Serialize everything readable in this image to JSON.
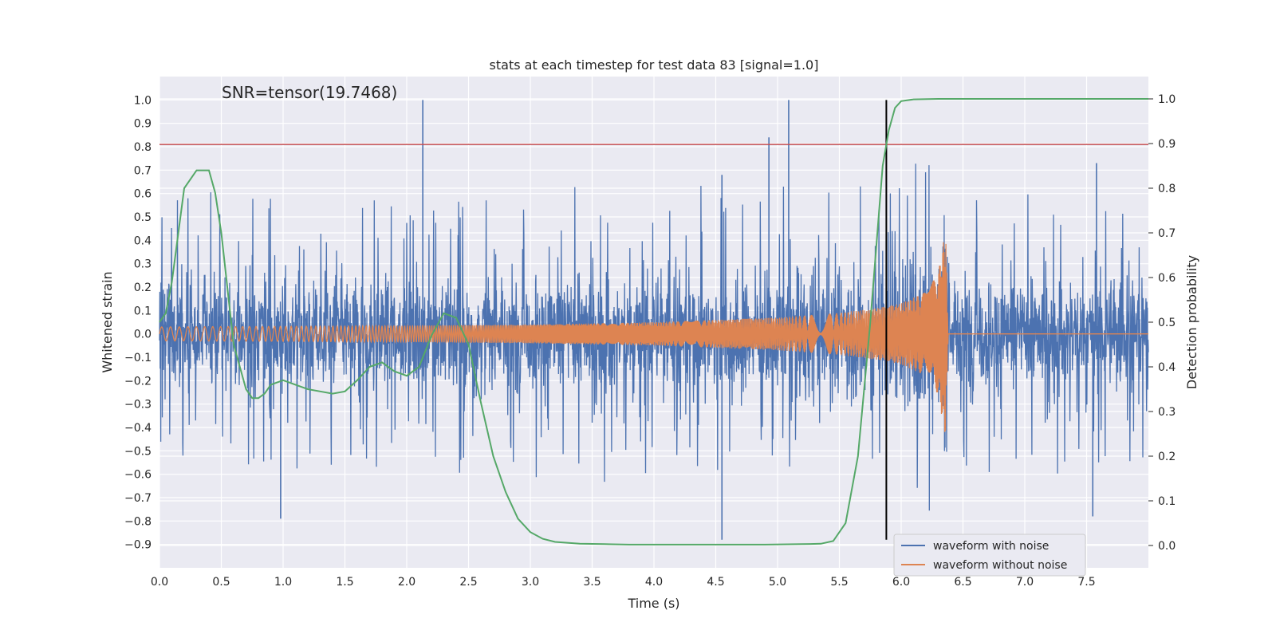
{
  "chart_data": {
    "type": "line",
    "title": "stats at each timestep for test data 83 [signal=1.0]",
    "xlabel": "Time (s)",
    "ylabel": "Whitened strain",
    "y2label": "Detection probability",
    "annotation": "SNR=tensor(19.7468)",
    "xlim": [
      0.0,
      8.0
    ],
    "ylim": [
      -1.0,
      1.1
    ],
    "y2lim": [
      -0.05,
      1.05
    ],
    "x_ticks": [
      "0.0",
      "0.5",
      "1.0",
      "1.5",
      "2.0",
      "2.5",
      "3.0",
      "3.5",
      "4.0",
      "4.5",
      "5.0",
      "5.5",
      "6.0",
      "6.5",
      "7.0",
      "7.5"
    ],
    "y_ticks": [
      "−0.9",
      "−0.8",
      "−0.7",
      "−0.6",
      "−0.5",
      "−0.4",
      "−0.3",
      "−0.2",
      "−0.1",
      "0.0",
      "0.1",
      "0.2",
      "0.3",
      "0.4",
      "0.5",
      "0.6",
      "0.7",
      "0.8",
      "0.9",
      "1.0"
    ],
    "y2_ticks": [
      "0.0",
      "0.1",
      "0.2",
      "0.3",
      "0.4",
      "0.5",
      "0.6",
      "0.7",
      "0.8",
      "0.9",
      "1.0"
    ],
    "grid": true,
    "legend_position": "bottom-right",
    "series": [
      {
        "name": "waveform with noise",
        "color": "#4c72b0",
        "description_envelope": {
          "typical_upper": 0.5,
          "typical_lower": -0.5,
          "peak_max": 1.0,
          "peak_min": -0.88
        },
        "notable_peaks": [
          {
            "x": 2.13,
            "y": 1.0
          },
          {
            "x": 5.09,
            "y": 1.0
          },
          {
            "x": 4.93,
            "y": 0.84
          },
          {
            "x": 4.55,
            "y": 0.68
          },
          {
            "x": 7.58,
            "y": 0.73
          },
          {
            "x": 4.55,
            "y": -0.88
          },
          {
            "x": 0.98,
            "y": -0.79
          },
          {
            "x": 7.55,
            "y": -0.78
          }
        ]
      },
      {
        "name": "waveform without noise",
        "color": "#dd8452",
        "amplitude_envelope": {
          "x": [
            0.0,
            1.0,
            2.0,
            3.0,
            4.0,
            4.5,
            5.0,
            5.5,
            5.8,
            6.0,
            6.2,
            6.3,
            6.36,
            6.38,
            8.0
          ],
          "amp": [
            0.03,
            0.032,
            0.035,
            0.04,
            0.05,
            0.06,
            0.07,
            0.09,
            0.11,
            0.13,
            0.18,
            0.26,
            0.45,
            0.0,
            0.0
          ]
        }
      },
      {
        "name": "detection probability",
        "color": "#55a868",
        "axis": "right",
        "x": [
          0.0,
          0.05,
          0.1,
          0.2,
          0.3,
          0.4,
          0.45,
          0.5,
          0.6,
          0.7,
          0.75,
          0.8,
          0.85,
          0.9,
          1.0,
          1.1,
          1.2,
          1.3,
          1.4,
          1.5,
          1.6,
          1.7,
          1.8,
          1.9,
          2.0,
          2.1,
          2.2,
          2.3,
          2.4,
          2.5,
          2.6,
          2.7,
          2.8,
          2.9,
          3.0,
          3.1,
          3.2,
          3.4,
          3.6,
          3.8,
          4.0,
          4.3,
          4.6,
          4.9,
          5.2,
          5.35,
          5.45,
          5.55,
          5.65,
          5.75,
          5.85,
          5.9,
          5.95,
          6.0,
          6.1,
          6.3,
          6.6,
          7.0,
          7.5,
          8.0
        ],
        "y": [
          0.5,
          0.52,
          0.59,
          0.8,
          0.84,
          0.84,
          0.79,
          0.7,
          0.45,
          0.35,
          0.33,
          0.33,
          0.34,
          0.36,
          0.37,
          0.36,
          0.35,
          0.345,
          0.34,
          0.345,
          0.37,
          0.4,
          0.41,
          0.39,
          0.38,
          0.4,
          0.47,
          0.52,
          0.51,
          0.45,
          0.32,
          0.2,
          0.12,
          0.06,
          0.03,
          0.015,
          0.008,
          0.004,
          0.003,
          0.002,
          0.002,
          0.002,
          0.002,
          0.002,
          0.003,
          0.004,
          0.01,
          0.05,
          0.2,
          0.5,
          0.85,
          0.93,
          0.98,
          0.995,
          0.999,
          1.0,
          1.0,
          1.0,
          1.0,
          1.0
        ]
      }
    ],
    "hlines": [
      {
        "y": 0.81,
        "color": "#c44e52",
        "axis": "left"
      }
    ],
    "vlines": [
      {
        "x": 5.88,
        "ymin": -0.88,
        "ymax": 1.0,
        "color": "#000000"
      }
    ],
    "legend": [
      {
        "label": "waveform with noise",
        "color": "#4c72b0"
      },
      {
        "label": "waveform without noise",
        "color": "#dd8452"
      }
    ]
  }
}
